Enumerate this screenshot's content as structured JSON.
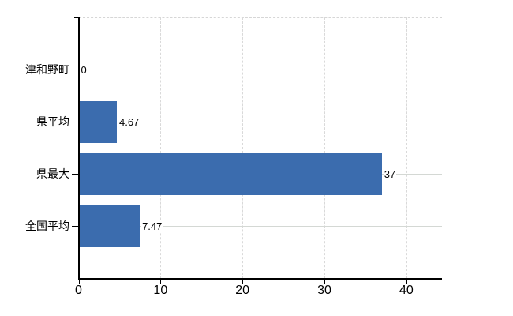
{
  "page": {
    "background_color": "#ffffff"
  },
  "chart_data": {
    "type": "bar",
    "orientation": "horizontal",
    "title": "",
    "xlabel": "",
    "ylabel": "",
    "categories": [
      "津和野町",
      "県平均",
      "県最大",
      "全国平均"
    ],
    "values": [
      0,
      4.67,
      37,
      7.47
    ],
    "value_labels": [
      "0",
      "4.67",
      "37",
      "7.47"
    ],
    "x_ticks": [
      0,
      10,
      20,
      30,
      40
    ],
    "x_tick_labels": [
      "0",
      "10",
      "20",
      "30",
      "40"
    ],
    "xlim": [
      0,
      44.3
    ],
    "grid": true,
    "legend": "none",
    "colors": {
      "bar": "#3b6cae",
      "axis": "#000000",
      "h_gridline": "#d4d8d4",
      "v_gridline": "#d9d9d9",
      "text": "#000000",
      "background": "#ffffff"
    }
  }
}
